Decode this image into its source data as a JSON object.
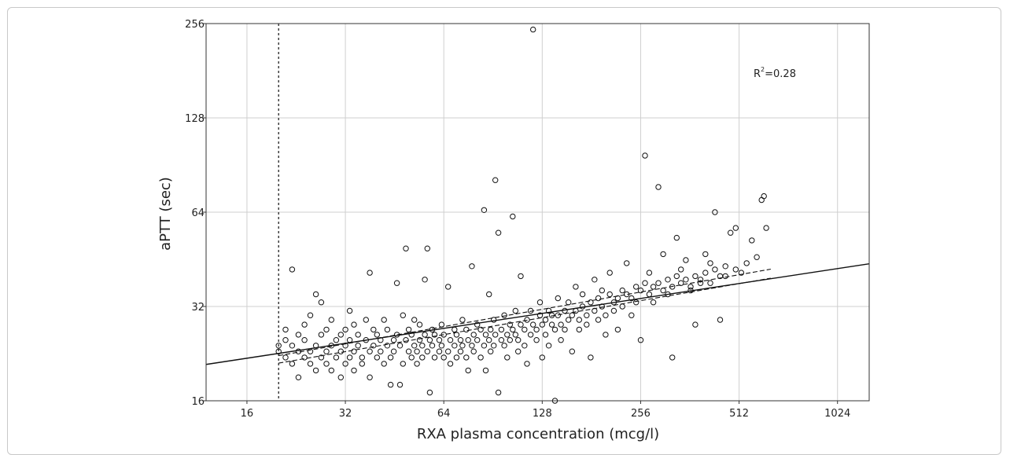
{
  "chart_data": {
    "type": "scatter",
    "title": "",
    "xlabel": "RXA plasma concentration (mcg/l)",
    "ylabel": "aPTT (sec)",
    "x_scale": "log2",
    "y_scale": "log2",
    "xlim": [
      12,
      1280
    ],
    "ylim": [
      16,
      256
    ],
    "x_ticks": [
      16,
      32,
      64,
      128,
      256,
      512,
      1024
    ],
    "y_ticks": [
      16,
      32,
      64,
      128,
      256
    ],
    "grid": true,
    "annotation": {
      "text_main": "R",
      "text_sup": "2",
      "text_rest": "=0.28"
    },
    "reference_line_x": 20,
    "regression": {
      "fit": [
        [
          12,
          20.9
        ],
        [
          1280,
          43.8
        ]
      ],
      "ci_upper": [
        [
          20,
          22.3
        ],
        [
          640,
          42.1
        ]
      ],
      "ci_lower": [
        [
          20,
          21.1
        ],
        [
          640,
          39.4
        ]
      ]
    },
    "points": [
      [
        20,
        23
      ],
      [
        20,
        24
      ],
      [
        21,
        22
      ],
      [
        21,
        25
      ],
      [
        21,
        27
      ],
      [
        22,
        21
      ],
      [
        22,
        24
      ],
      [
        22,
        42
      ],
      [
        23,
        23
      ],
      [
        23,
        26
      ],
      [
        23,
        19
      ],
      [
        24,
        22
      ],
      [
        24,
        25
      ],
      [
        24,
        28
      ],
      [
        25,
        21
      ],
      [
        25,
        23
      ],
      [
        25,
        30
      ],
      [
        26,
        24
      ],
      [
        26,
        35
      ],
      [
        26,
        20
      ],
      [
        27,
        22
      ],
      [
        27,
        26
      ],
      [
        27,
        33
      ],
      [
        28,
        21
      ],
      [
        28,
        23
      ],
      [
        28,
        27
      ],
      [
        29,
        24
      ],
      [
        29,
        20
      ],
      [
        29,
        29
      ],
      [
        30,
        22
      ],
      [
        30,
        25
      ],
      [
        31,
        23
      ],
      [
        31,
        26
      ],
      [
        31,
        19
      ],
      [
        32,
        21
      ],
      [
        32,
        24
      ],
      [
        32,
        27
      ],
      [
        33,
        22
      ],
      [
        33,
        25
      ],
      [
        33,
        31
      ],
      [
        34,
        23
      ],
      [
        34,
        20
      ],
      [
        34,
        28
      ],
      [
        35,
        24
      ],
      [
        35,
        26
      ],
      [
        36,
        22
      ],
      [
        36,
        21
      ],
      [
        37,
        25
      ],
      [
        37,
        29
      ],
      [
        38,
        23
      ],
      [
        38,
        41
      ],
      [
        38,
        19
      ],
      [
        39,
        24
      ],
      [
        39,
        27
      ],
      [
        40,
        22
      ],
      [
        40,
        26
      ],
      [
        41,
        23
      ],
      [
        41,
        25
      ],
      [
        42,
        21
      ],
      [
        42,
        29
      ],
      [
        43,
        24
      ],
      [
        43,
        27
      ],
      [
        44,
        22
      ],
      [
        44,
        18
      ],
      [
        45,
        25
      ],
      [
        45,
        23
      ],
      [
        46,
        26
      ],
      [
        46,
        38
      ],
      [
        47,
        24
      ],
      [
        47,
        18
      ],
      [
        48,
        21
      ],
      [
        48,
        30
      ],
      [
        49,
        25
      ],
      [
        49,
        49
      ],
      [
        50,
        23
      ],
      [
        50,
        27
      ],
      [
        51,
        22
      ],
      [
        51,
        26
      ],
      [
        52,
        24
      ],
      [
        52,
        29
      ],
      [
        53,
        23
      ],
      [
        53,
        21
      ],
      [
        54,
        25
      ],
      [
        54,
        28
      ],
      [
        55,
        24
      ],
      [
        55,
        22
      ],
      [
        56,
        26
      ],
      [
        56,
        39
      ],
      [
        57,
        23
      ],
      [
        57,
        49
      ],
      [
        58,
        25
      ],
      [
        58,
        17
      ],
      [
        59,
        24
      ],
      [
        59,
        27
      ],
      [
        60,
        22
      ],
      [
        60,
        26
      ],
      [
        62,
        23
      ],
      [
        62,
        25
      ],
      [
        63,
        24
      ],
      [
        63,
        28
      ],
      [
        64,
        22
      ],
      [
        64,
        26
      ],
      [
        66,
        23
      ],
      [
        66,
        37
      ],
      [
        67,
        25
      ],
      [
        67,
        21
      ],
      [
        69,
        24
      ],
      [
        69,
        27
      ],
      [
        70,
        22
      ],
      [
        70,
        26
      ],
      [
        72,
        25
      ],
      [
        72,
        23
      ],
      [
        73,
        24
      ],
      [
        73,
        29
      ],
      [
        75,
        22
      ],
      [
        75,
        27
      ],
      [
        76,
        25
      ],
      [
        76,
        20
      ],
      [
        78,
        24
      ],
      [
        78,
        43
      ],
      [
        79,
        26
      ],
      [
        79,
        23
      ],
      [
        81,
        25
      ],
      [
        81,
        28
      ],
      [
        83,
        22
      ],
      [
        83,
        27
      ],
      [
        85,
        24
      ],
      [
        85,
        65
      ],
      [
        86,
        26
      ],
      [
        86,
        20
      ],
      [
        88,
        25
      ],
      [
        88,
        35
      ],
      [
        89,
        27
      ],
      [
        89,
        23
      ],
      [
        91,
        24
      ],
      [
        91,
        29
      ],
      [
        92,
        26
      ],
      [
        92,
        81
      ],
      [
        94,
        55
      ],
      [
        94,
        17
      ],
      [
        96,
        27
      ],
      [
        96,
        25
      ],
      [
        98,
        24
      ],
      [
        98,
        30
      ],
      [
        100,
        26
      ],
      [
        100,
        22
      ],
      [
        102,
        28
      ],
      [
        102,
        25
      ],
      [
        104,
        27
      ],
      [
        104,
        62
      ],
      [
        106,
        26
      ],
      [
        106,
        31
      ],
      [
        108,
        25
      ],
      [
        108,
        23
      ],
      [
        110,
        28
      ],
      [
        110,
        40
      ],
      [
        113,
        27
      ],
      [
        113,
        24
      ],
      [
        115,
        29
      ],
      [
        115,
        21
      ],
      [
        118,
        26
      ],
      [
        118,
        31
      ],
      [
        120,
        28
      ],
      [
        120,
        245
      ],
      [
        123,
        27
      ],
      [
        123,
        25
      ],
      [
        126,
        30
      ],
      [
        126,
        33
      ],
      [
        128,
        28
      ],
      [
        128,
        22
      ],
      [
        131,
        29
      ],
      [
        131,
        26
      ],
      [
        134,
        31
      ],
      [
        134,
        24
      ],
      [
        137,
        28
      ],
      [
        137,
        30
      ],
      [
        140,
        27
      ],
      [
        140,
        16
      ],
      [
        143,
        30
      ],
      [
        143,
        34
      ],
      [
        146,
        28
      ],
      [
        146,
        25
      ],
      [
        150,
        31
      ],
      [
        150,
        27
      ],
      [
        154,
        29
      ],
      [
        154,
        33
      ],
      [
        158,
        30
      ],
      [
        158,
        23
      ],
      [
        162,
        31
      ],
      [
        162,
        37
      ],
      [
        166,
        29
      ],
      [
        166,
        27
      ],
      [
        170,
        32
      ],
      [
        170,
        35
      ],
      [
        175,
        30
      ],
      [
        175,
        28
      ],
      [
        180,
        33
      ],
      [
        180,
        22
      ],
      [
        185,
        31
      ],
      [
        185,
        39
      ],
      [
        190,
        34
      ],
      [
        190,
        29
      ],
      [
        195,
        32
      ],
      [
        195,
        36
      ],
      [
        200,
        30
      ],
      [
        200,
        26
      ],
      [
        206,
        35
      ],
      [
        206,
        41
      ],
      [
        212,
        33
      ],
      [
        212,
        31
      ],
      [
        218,
        34
      ],
      [
        218,
        27
      ],
      [
        225,
        36
      ],
      [
        225,
        32
      ],
      [
        232,
        35
      ],
      [
        232,
        44
      ],
      [
        240,
        34
      ],
      [
        240,
        30
      ],
      [
        248,
        37
      ],
      [
        248,
        33
      ],
      [
        256,
        36
      ],
      [
        256,
        25
      ],
      [
        264,
        38
      ],
      [
        264,
        97
      ],
      [
        272,
        35
      ],
      [
        272,
        41
      ],
      [
        280,
        37
      ],
      [
        280,
        33
      ],
      [
        290,
        38
      ],
      [
        290,
        77
      ],
      [
        300,
        36
      ],
      [
        300,
        47
      ],
      [
        310,
        39
      ],
      [
        310,
        35
      ],
      [
        320,
        37
      ],
      [
        320,
        22
      ],
      [
        330,
        40
      ],
      [
        330,
        53
      ],
      [
        340,
        38
      ],
      [
        340,
        42
      ],
      [
        352,
        39
      ],
      [
        352,
        45
      ],
      [
        364,
        37
      ],
      [
        364,
        36
      ],
      [
        376,
        40
      ],
      [
        376,
        28
      ],
      [
        390,
        39
      ],
      [
        390,
        38
      ],
      [
        404,
        41
      ],
      [
        404,
        47
      ],
      [
        418,
        38
      ],
      [
        418,
        44
      ],
      [
        432,
        42
      ],
      [
        432,
        64
      ],
      [
        448,
        40
      ],
      [
        448,
        29
      ],
      [
        465,
        43
      ],
      [
        465,
        40
      ],
      [
        482,
        55
      ],
      [
        500,
        42
      ],
      [
        500,
        57
      ],
      [
        520,
        41
      ],
      [
        540,
        44
      ],
      [
        560,
        52
      ],
      [
        580,
        46
      ],
      [
        600,
        70
      ],
      [
        610,
        72
      ],
      [
        620,
        57
      ]
    ]
  }
}
